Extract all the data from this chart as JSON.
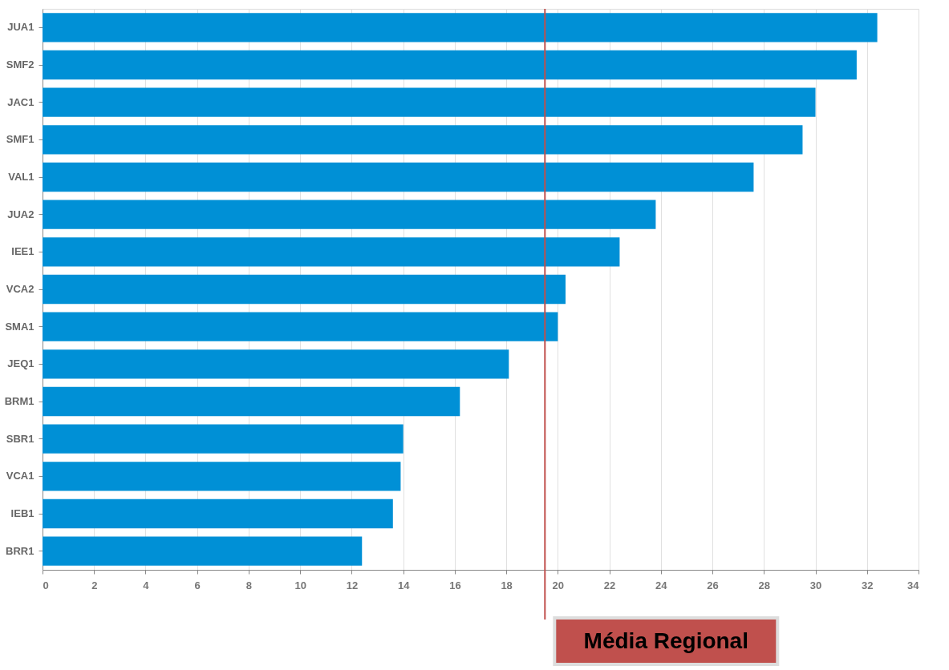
{
  "chart_data": {
    "type": "bar",
    "orientation": "horizontal",
    "categories": [
      "JUA1",
      "SMF2",
      "JAC1",
      "SMF1",
      "VAL1",
      "JUA2",
      "IEE1",
      "VCA2",
      "SMA1",
      "JEQ1",
      "BRM1",
      "SBR1",
      "VCA1",
      "IEB1",
      "BRR1"
    ],
    "values": [
      32.4,
      31.6,
      30.0,
      29.5,
      27.6,
      23.8,
      22.4,
      20.3,
      20.0,
      18.1,
      16.2,
      14.0,
      13.9,
      13.6,
      12.4
    ],
    "color": "#0090d6",
    "xlim": [
      0,
      34
    ],
    "xticks": [
      0,
      2,
      4,
      6,
      8,
      10,
      12,
      14,
      16,
      18,
      20,
      22,
      24,
      26,
      28,
      30,
      32,
      34
    ],
    "grid": "x",
    "ref_lines": [
      {
        "axis": "x",
        "value": 19.5,
        "label": "Média Regional",
        "color": "#c0504d"
      }
    ]
  }
}
